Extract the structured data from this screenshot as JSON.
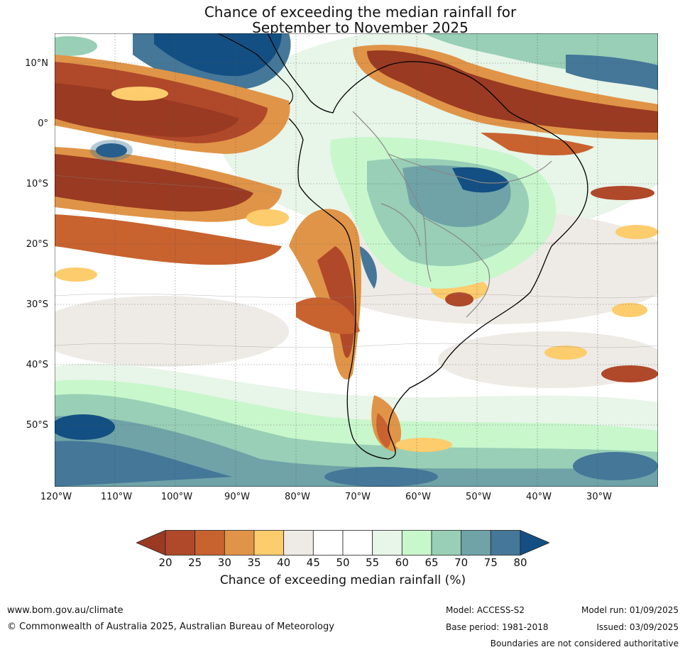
{
  "title": {
    "line1": "Chance of exceeding the median rainfall for",
    "line2": "September to November 2025"
  },
  "map": {
    "lat_labels": [
      "10°N",
      "0°",
      "10°S",
      "20°S",
      "30°S",
      "40°S",
      "50°S"
    ],
    "lon_labels": [
      "120°W",
      "110°W",
      "100°W",
      "90°W",
      "80°W",
      "70°W",
      "60°W",
      "50°W",
      "40°W",
      "30°W"
    ],
    "lat_range": [
      -60,
      15
    ],
    "lon_range": [
      -120,
      -20
    ]
  },
  "colorbar": {
    "ticks": [
      "20",
      "25",
      "30",
      "35",
      "40",
      "45",
      "50",
      "55",
      "60",
      "65",
      "70",
      "75",
      "80"
    ],
    "colors": [
      "#9a3a22",
      "#b0482a",
      "#c8622f",
      "#e09447",
      "#fdcc6c",
      "#eeebe6",
      "#ffffff",
      "#ffffff",
      "#e8f5e9",
      "#c8f7cc",
      "#98cfb6",
      "#6fa3a8",
      "#447798",
      "#134f82"
    ],
    "label": "Chance of exceeding median rainfall (%)"
  },
  "footer": {
    "url": "www.bom.gov.au/climate",
    "copyright": "© Commonwealth of Australia 2025, Australian Bureau of Meteorology",
    "model": "Model: ACCESS-S2",
    "base_period": "Base period: 1981-2018",
    "model_run": "Model run: 01/09/2025",
    "issued": "Issued: 03/09/2025",
    "disclaimer": "Boundaries are not considered authoritative"
  }
}
